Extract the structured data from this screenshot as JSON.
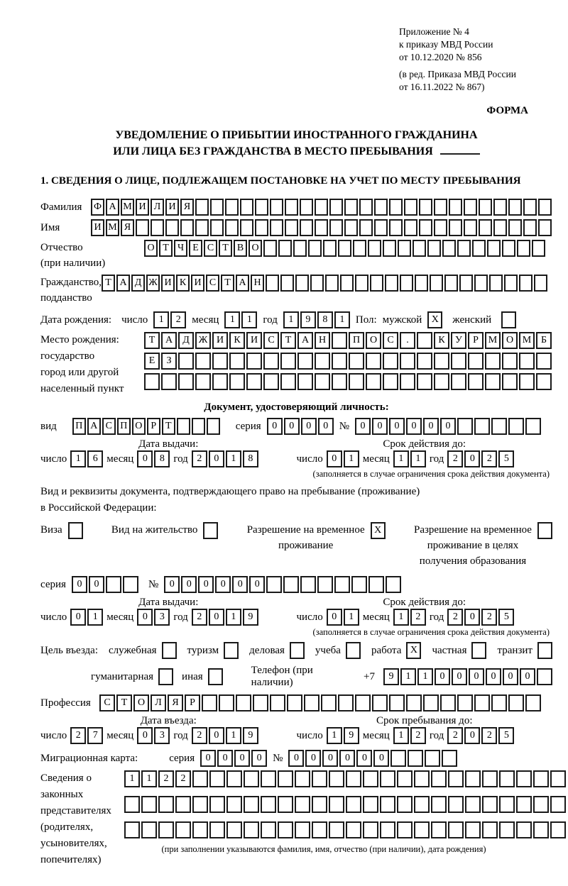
{
  "colors": {
    "border": "#1a1a1a",
    "text": "#000000",
    "background": "#ffffff"
  },
  "header_block": {
    "line1": "Приложение № 4",
    "line2": "к приказу МВД России",
    "line3": "от 10.12.2020 № 856",
    "line4": "(в ред. Приказа МВД России",
    "line5": "от 16.11.2022 № 867)",
    "forma_label": "ФОРМА"
  },
  "title": {
    "line1": "УВЕДОМЛЕНИЕ О ПРИБЫТИИ ИНОСТРАННОГО ГРАЖДАНИНА",
    "line2": "ИЛИ ЛИЦА БЕЗ ГРАЖДАНСТВА В МЕСТО ПРЕБЫВАНИЯ"
  },
  "date_words": {
    "day": "число",
    "month": "месяц",
    "year": "год"
  },
  "section1": {
    "heading": "1. СВЕДЕНИЯ О ЛИЦЕ, ПОДЛЕЖАЩЕМ ПОСТАНОВКЕ НА УЧЕТ ПО МЕСТУ ПРЕБЫВАНИЯ",
    "surname": {
      "label": "Фамилия",
      "boxes": {
        "value": "ФАМИЛИЯ",
        "cells": 31
      }
    },
    "firstname": {
      "label": "Имя",
      "boxes": {
        "value": "ИМЯ",
        "cells": 31
      }
    },
    "patronymic": {
      "label_line1": "Отчество",
      "label_line2": "(при наличии)",
      "boxes": {
        "value": "ОТЧЕСТВО",
        "cells": 27
      }
    },
    "citizenship": {
      "label_line1": "Гражданство,",
      "label_line2": "подданство",
      "boxes": {
        "value": "ТАДЖИКИСТАН",
        "cells": 30
      }
    },
    "birth_date": {
      "label": "Дата рождения:",
      "day": {
        "value": "12",
        "cells": 2
      },
      "month": {
        "value": "11",
        "cells": 2
      },
      "year": {
        "value": "1981",
        "cells": 4
      },
      "sex_label": "Пол:",
      "male_label": "мужской",
      "male_checked": "X",
      "female_label": "женский",
      "female_checked": ""
    },
    "birth_place": {
      "label_line1": "Место рождения:",
      "label_line2": "государство",
      "label_line3": "город или другой",
      "label_line4": "населенный пункт",
      "row1": {
        "value": "ТАДЖИКИСТАН ПОС. КУРМОМБ",
        "cells": 24
      },
      "row2": {
        "value": "ЕЗ",
        "cells": 24
      },
      "row3": {
        "value": "",
        "cells": 24
      }
    },
    "identity_doc": {
      "heading": "Документ, удостоверяющий личность:",
      "kind_label": "вид",
      "kind": {
        "value": "ПАСПОРТ",
        "cells": 10
      },
      "series_label": "серия",
      "series": {
        "value": "0000",
        "cells": 4
      },
      "number_label": "№",
      "number": {
        "value": "000000",
        "cells": 11
      },
      "issue_head": "Дата выдачи:",
      "issue_day": {
        "value": "16",
        "cells": 2
      },
      "issue_month": {
        "value": "08",
        "cells": 2
      },
      "issue_year": {
        "value": "2018",
        "cells": 4
      },
      "valid_head": "Срок действия до:",
      "valid_day": {
        "value": "01",
        "cells": 2
      },
      "valid_month": {
        "value": "11",
        "cells": 2
      },
      "valid_year": {
        "value": "2025",
        "cells": 4
      },
      "footnote": "(заполняется в случае ограничения срока действия документа)"
    },
    "residence_doc": {
      "intro_line1": "Вид и реквизиты документа, подтверждающего право на пребывание (проживание)",
      "intro_line2": "в Российской Федерации:",
      "visa_label": "Виза",
      "visa_checked": "",
      "permit_label": "Вид на жительство",
      "permit_checked": "",
      "temp_label_line1": "Разрешение на временное",
      "temp_label_line2": "проживание",
      "temp_checked": "X",
      "edu_label_line1": "Разрешение на временное",
      "edu_label_line2": "проживание в целях",
      "edu_label_line3": "получения образования",
      "edu_checked": "",
      "series_label": "серия",
      "series": {
        "value": "00",
        "cells": 4
      },
      "number_label": "№",
      "number": {
        "value": "000000",
        "cells": 14
      },
      "issue_head": "Дата выдачи:",
      "issue_day": {
        "value": "01",
        "cells": 2
      },
      "issue_month": {
        "value": "03",
        "cells": 2
      },
      "issue_year": {
        "value": "2019",
        "cells": 4
      },
      "valid_head": "Срок действия до:",
      "valid_day": {
        "value": "01",
        "cells": 2
      },
      "valid_month": {
        "value": "12",
        "cells": 2
      },
      "valid_year": {
        "value": "2025",
        "cells": 4
      },
      "footnote": "(заполняется в случае ограничения срока действия документа)"
    },
    "visit_purpose": {
      "label": "Цель въезда:",
      "options": [
        {
          "label": "служебная",
          "checked": ""
        },
        {
          "label": "туризм",
          "checked": ""
        },
        {
          "label": "деловая",
          "checked": ""
        },
        {
          "label": "учеба",
          "checked": ""
        },
        {
          "label": "работа",
          "checked": "X"
        },
        {
          "label": "частная",
          "checked": ""
        },
        {
          "label": "транзит",
          "checked": ""
        },
        {
          "label": "гуманитарная",
          "checked": ""
        },
        {
          "label": "иная",
          "checked": ""
        }
      ],
      "phone_label": "Телефон (при наличии)",
      "phone_prefix": "+7",
      "phone": {
        "value": "911000000",
        "cells": 10
      }
    },
    "profession": {
      "label": "Профессия",
      "boxes": {
        "value": "СТОЛЯР",
        "cells": 26
      }
    },
    "entry": {
      "entry_head": "Дата въезда:",
      "entry_day": {
        "value": "27",
        "cells": 2
      },
      "entry_month": {
        "value": "03",
        "cells": 2
      },
      "entry_year": {
        "value": "2019",
        "cells": 4
      },
      "stay_head": "Срок пребывания до:",
      "stay_day": {
        "value": "19",
        "cells": 2
      },
      "stay_month": {
        "value": "12",
        "cells": 2
      },
      "stay_year": {
        "value": "2025",
        "cells": 4
      }
    },
    "migration_card": {
      "label": "Миграционная карта:",
      "series_label": "серия",
      "series": {
        "value": "0000",
        "cells": 4
      },
      "number_label": "№",
      "number": {
        "value": "000000",
        "cells": 10
      }
    },
    "legal_reps": {
      "label_lines": [
        "Сведения о",
        "законных",
        "представителях",
        "(родителях,",
        "усыновителях,",
        "попечителях)"
      ],
      "row1": {
        "value": "1122",
        "cells": 26
      },
      "row2": {
        "value": "",
        "cells": 26
      },
      "row3": {
        "value": "",
        "cells": 26
      },
      "footnote": "(при заполнении указываются фамилия, имя, отчество (при наличии), дата рождения)"
    }
  }
}
